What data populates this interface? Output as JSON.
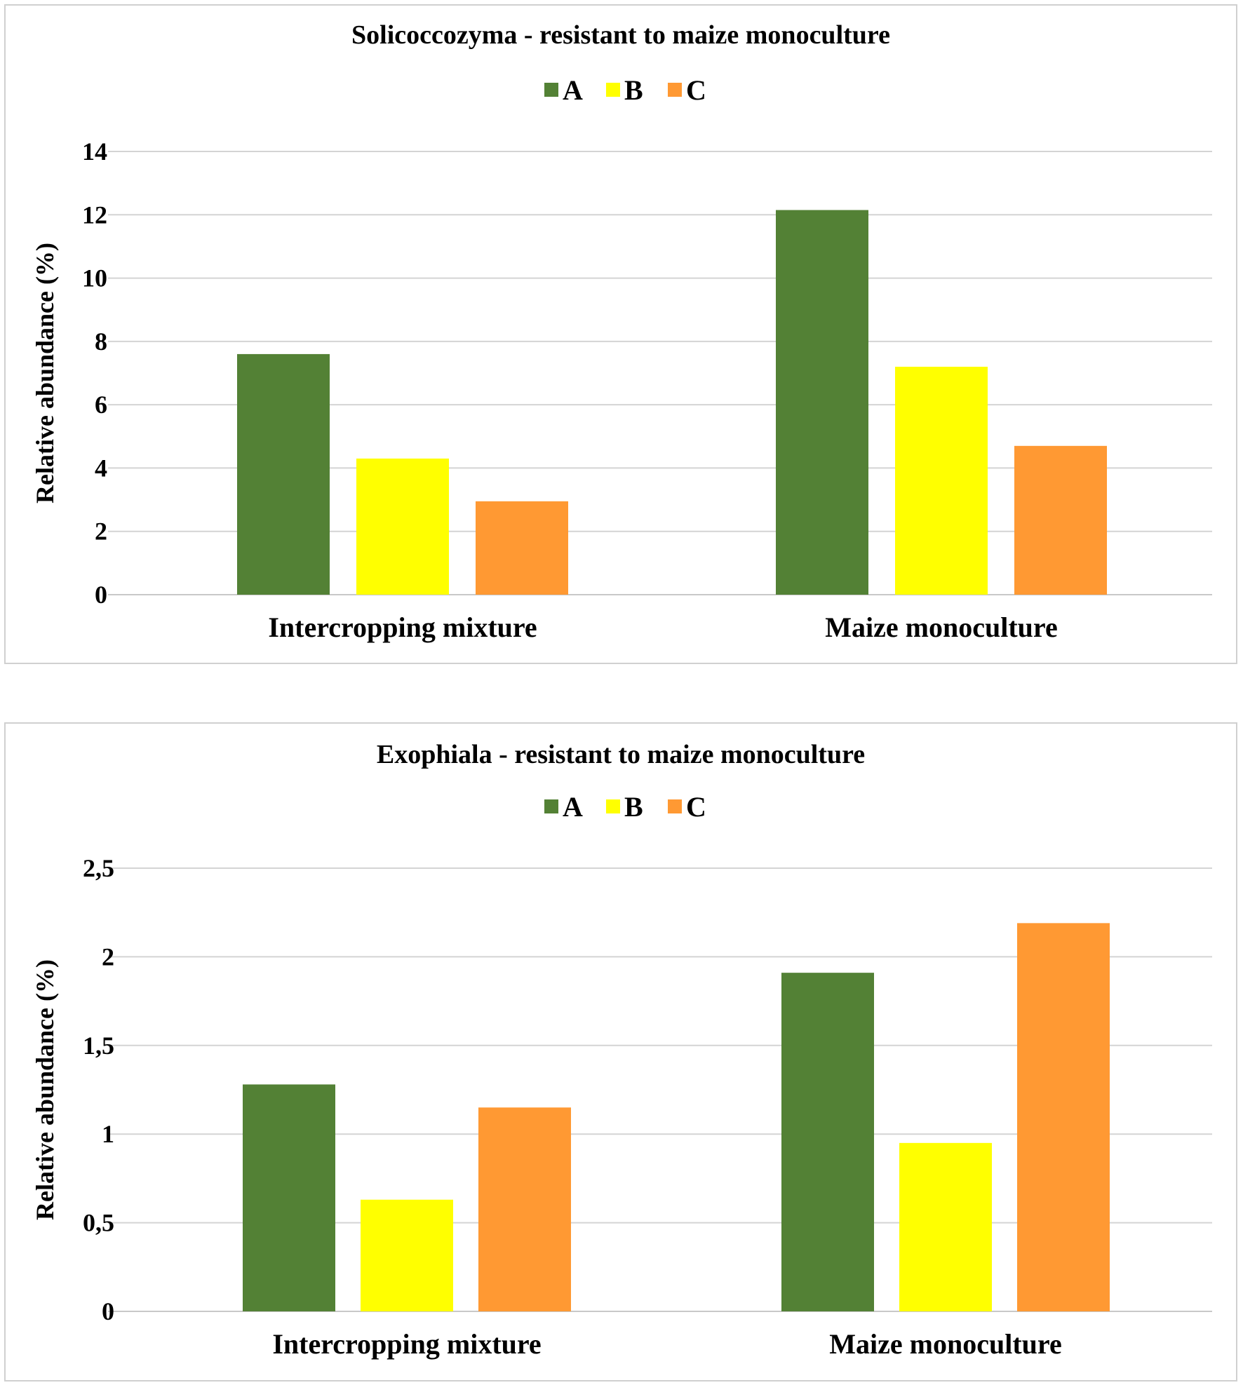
{
  "chart_data": [
    {
      "type": "bar",
      "title": "Solicoccozyma  - resistant to maize monoculture",
      "xlabel": "",
      "ylabel": "Relative abundance (%)",
      "categories": [
        "Intercropping mixture",
        "Maize monoculture"
      ],
      "series": [
        {
          "name": "A",
          "color": "#538135",
          "values": [
            7.6,
            12.15
          ]
        },
        {
          "name": "B",
          "color": "#ffff00",
          "values": [
            4.3,
            7.2
          ]
        },
        {
          "name": "C",
          "color": "#ff9933",
          "values": [
            2.95,
            4.7
          ]
        }
      ],
      "ylim": [
        0,
        14
      ],
      "yticks": [
        0,
        2,
        4,
        6,
        8,
        10,
        12,
        14
      ],
      "ytick_labels": [
        "0",
        "2",
        "4",
        "6",
        "8",
        "10",
        "12",
        "14"
      ],
      "grid": true,
      "legend": "top-center"
    },
    {
      "type": "bar",
      "title": "Exophiala  - resistant to maize monoculture",
      "xlabel": "",
      "ylabel": "Relative abundance (%)",
      "categories": [
        "Intercropping mixture",
        "Maize monoculture"
      ],
      "series": [
        {
          "name": "A",
          "color": "#538135",
          "values": [
            1.28,
            1.91
          ]
        },
        {
          "name": "B",
          "color": "#ffff00",
          "values": [
            0.63,
            0.95
          ]
        },
        {
          "name": "C",
          "color": "#ff9933",
          "values": [
            1.15,
            2.19
          ]
        }
      ],
      "ylim": [
        0,
        2.5
      ],
      "yticks": [
        0,
        0.5,
        1,
        1.5,
        2,
        2.5
      ],
      "ytick_labels": [
        "0",
        "0,5",
        "1",
        "1,5",
        "2",
        "2,5"
      ],
      "grid": true,
      "legend": "top-center"
    }
  ]
}
